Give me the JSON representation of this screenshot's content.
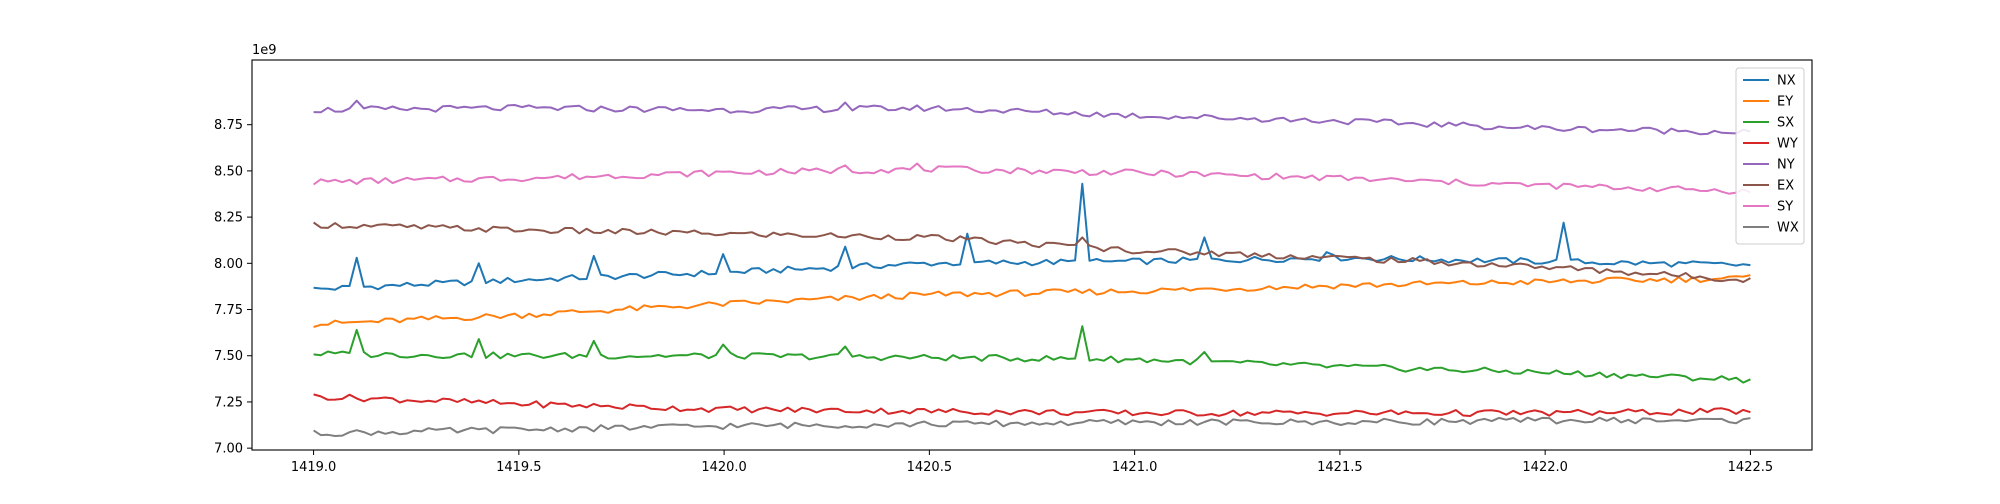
{
  "chart_data": {
    "type": "line",
    "title": "",
    "xlabel": "",
    "ylabel": "",
    "offset_label": "1e9",
    "xlim": [
      1418.85,
      1422.65
    ],
    "ylim": [
      6.99,
      9.1
    ],
    "x_ticks": [
      1419.0,
      1419.5,
      1420.0,
      1420.5,
      1421.0,
      1421.5,
      1422.0,
      1422.5
    ],
    "x_tick_labels": [
      "1419.0",
      "1419.5",
      "1420.0",
      "1420.5",
      "1421.0",
      "1421.5",
      "1422.0",
      "1422.5"
    ],
    "y_ticks": [
      7.0,
      7.25,
      7.5,
      7.75,
      8.0,
      8.25,
      8.5,
      8.75
    ],
    "y_tick_labels": [
      "7.00",
      "7.25",
      "7.50",
      "7.75",
      "8.00",
      "8.25",
      "8.50",
      "8.75"
    ],
    "grid": false,
    "legend_position": "top-right",
    "x_start": 1419.0,
    "x_end": 1422.5,
    "series": [
      {
        "name": "NX",
        "color": "#1f77b4",
        "trend": [
          [
            1419.0,
            7.86
          ],
          [
            1419.5,
            7.91
          ],
          [
            1420.0,
            7.95
          ],
          [
            1420.5,
            8.0
          ],
          [
            1421.0,
            8.01
          ],
          [
            1421.5,
            8.03
          ],
          [
            1422.0,
            8.01
          ],
          [
            1422.5,
            7.99
          ]
        ],
        "spikes": [
          [
            1419.11,
            8.03
          ],
          [
            1419.41,
            8.0
          ],
          [
            1419.69,
            8.04
          ],
          [
            1420.0,
            8.05
          ],
          [
            1420.29,
            8.09
          ],
          [
            1420.59,
            8.16
          ],
          [
            1420.87,
            8.43
          ],
          [
            1421.17,
            8.14
          ],
          [
            1421.47,
            8.06
          ],
          [
            1422.04,
            8.22
          ]
        ]
      },
      {
        "name": "EY",
        "color": "#ff7f0e",
        "trend": [
          [
            1419.0,
            7.67
          ],
          [
            1419.5,
            7.72
          ],
          [
            1420.0,
            7.78
          ],
          [
            1420.5,
            7.83
          ],
          [
            1421.0,
            7.85
          ],
          [
            1421.5,
            7.88
          ],
          [
            1422.0,
            7.9
          ],
          [
            1422.5,
            7.92
          ]
        ],
        "spikes": []
      },
      {
        "name": "SX",
        "color": "#2ca02c",
        "trend": [
          [
            1419.0,
            7.51
          ],
          [
            1419.5,
            7.5
          ],
          [
            1420.0,
            7.5
          ],
          [
            1420.5,
            7.49
          ],
          [
            1421.0,
            7.48
          ],
          [
            1421.5,
            7.44
          ],
          [
            1422.0,
            7.41
          ],
          [
            1422.5,
            7.37
          ]
        ],
        "spikes": [
          [
            1419.11,
            7.64
          ],
          [
            1419.41,
            7.59
          ],
          [
            1419.69,
            7.58
          ],
          [
            1420.0,
            7.56
          ],
          [
            1420.29,
            7.55
          ],
          [
            1420.87,
            7.66
          ],
          [
            1421.17,
            7.52
          ]
        ]
      },
      {
        "name": "WY",
        "color": "#d62728",
        "trend": [
          [
            1419.0,
            7.28
          ],
          [
            1419.5,
            7.24
          ],
          [
            1420.0,
            7.21
          ],
          [
            1420.5,
            7.2
          ],
          [
            1421.0,
            7.19
          ],
          [
            1421.5,
            7.19
          ],
          [
            1422.0,
            7.19
          ],
          [
            1422.5,
            7.2
          ]
        ],
        "spikes": []
      },
      {
        "name": "NY",
        "color": "#9467bd",
        "trend": [
          [
            1419.0,
            8.83
          ],
          [
            1419.5,
            8.84
          ],
          [
            1420.0,
            8.83
          ],
          [
            1420.5,
            8.84
          ],
          [
            1421.0,
            8.8
          ],
          [
            1421.5,
            8.77
          ],
          [
            1422.0,
            8.73
          ],
          [
            1422.5,
            8.71
          ]
        ],
        "spikes": [
          [
            1419.11,
            8.88
          ],
          [
            1420.29,
            8.87
          ]
        ]
      },
      {
        "name": "EX",
        "color": "#8c564b",
        "trend": [
          [
            1419.0,
            8.21
          ],
          [
            1419.5,
            8.18
          ],
          [
            1420.0,
            8.16
          ],
          [
            1420.5,
            8.14
          ],
          [
            1421.0,
            8.07
          ],
          [
            1421.5,
            8.03
          ],
          [
            1422.0,
            7.98
          ],
          [
            1422.5,
            7.91
          ]
        ],
        "spikes": [
          [
            1420.87,
            8.14
          ]
        ]
      },
      {
        "name": "SY",
        "color": "#e377c2",
        "trend": [
          [
            1419.0,
            8.44
          ],
          [
            1419.5,
            8.46
          ],
          [
            1420.0,
            8.49
          ],
          [
            1420.5,
            8.51
          ],
          [
            1421.0,
            8.49
          ],
          [
            1421.5,
            8.46
          ],
          [
            1422.0,
            8.42
          ],
          [
            1422.5,
            8.39
          ]
        ],
        "spikes": [
          [
            1420.29,
            8.53
          ],
          [
            1420.47,
            8.54
          ]
        ]
      },
      {
        "name": "WX",
        "color": "#7f7f7f",
        "trend": [
          [
            1419.0,
            7.08
          ],
          [
            1419.5,
            7.1
          ],
          [
            1420.0,
            7.12
          ],
          [
            1420.5,
            7.13
          ],
          [
            1421.0,
            7.14
          ],
          [
            1421.5,
            7.14
          ],
          [
            1422.0,
            7.15
          ],
          [
            1422.5,
            7.15
          ]
        ],
        "spikes": []
      }
    ]
  }
}
